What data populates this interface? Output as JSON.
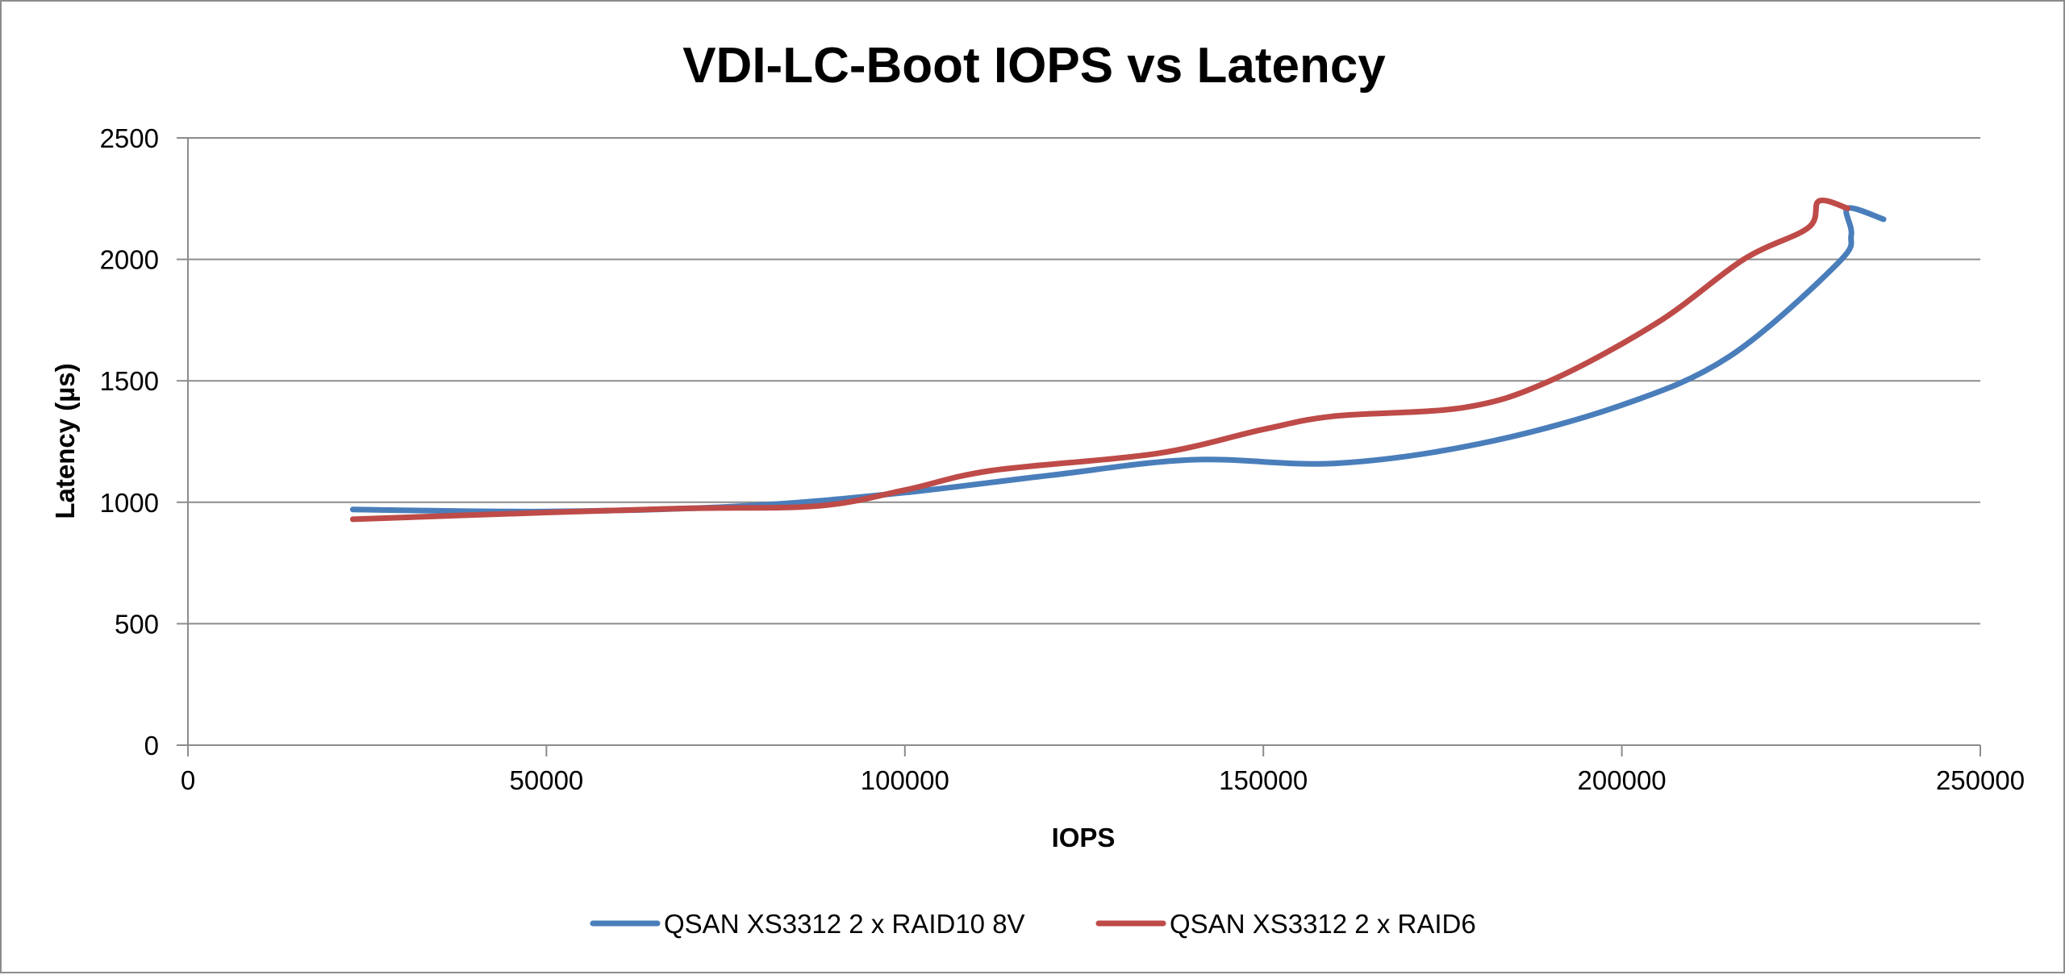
{
  "chart_data": {
    "type": "line",
    "title": "VDI-LC-Boot IOPS vs Latency",
    "xlabel": "IOPS",
    "ylabel": "Latency (µs)",
    "xlim": [
      0,
      250000
    ],
    "ylim": [
      0,
      2500
    ],
    "x_ticks": [
      0,
      50000,
      100000,
      150000,
      200000,
      250000
    ],
    "y_ticks": [
      0,
      500,
      1000,
      1500,
      2000,
      2500
    ],
    "grid": "horizontal",
    "legend_position": "bottom",
    "series": [
      {
        "name": "QSAN XS3312 2 x RAID10 8V",
        "color": "#4a7ebb",
        "x": [
          23000,
          50000,
          78000,
          100000,
          120000,
          140000,
          160000,
          180000,
          200000,
          215000,
          230000,
          232000,
          231500,
          236500
        ],
        "y": [
          970,
          962,
          985,
          1040,
          1110,
          1175,
          1160,
          1240,
          1400,
          1600,
          1980,
          2100,
          2210,
          2165
        ]
      },
      {
        "name": "QSAN XS3312 2 x RAID6",
        "color": "#be4b48",
        "x": [
          23000,
          50000,
          70000,
          88000,
          100000,
          112000,
          135000,
          150000,
          160000,
          178000,
          190000,
          205000,
          217000,
          226000,
          227500,
          231500
        ],
        "y": [
          930,
          958,
          975,
          985,
          1050,
          1130,
          1200,
          1300,
          1355,
          1390,
          1500,
          1740,
          2000,
          2130,
          2240,
          2210
        ]
      }
    ]
  }
}
